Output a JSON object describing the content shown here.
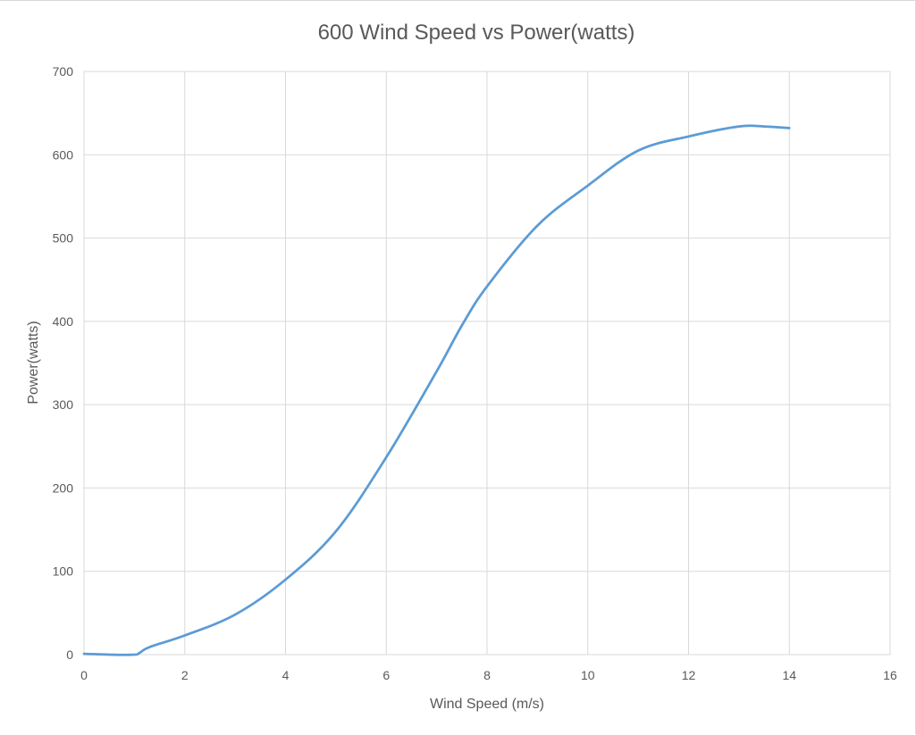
{
  "chart_data": {
    "type": "line",
    "title": "600 Wind Speed vs Power(watts)",
    "xlabel": "Wind Speed (m/s)",
    "ylabel": "Power(watts)",
    "xlim": [
      0,
      16
    ],
    "ylim": [
      0,
      700
    ],
    "x_ticks": [
      0,
      2,
      4,
      6,
      8,
      10,
      12,
      14,
      16
    ],
    "y_ticks": [
      0,
      100,
      200,
      300,
      400,
      500,
      600,
      700
    ],
    "grid": true,
    "legend": "none",
    "series": [
      {
        "color": "#5b9bd5",
        "x": [
          0,
          0.5,
          1,
          1.1,
          1.3,
          2,
          3,
          4,
          5,
          6,
          7,
          7.5,
          8,
          9,
          10,
          11,
          12,
          13,
          13.5,
          14
        ],
        "y": [
          1,
          0,
          0,
          2,
          9,
          23,
          48,
          90,
          148,
          237,
          340,
          395,
          442,
          515,
          563,
          605,
          622,
          634,
          634,
          632
        ]
      }
    ]
  }
}
